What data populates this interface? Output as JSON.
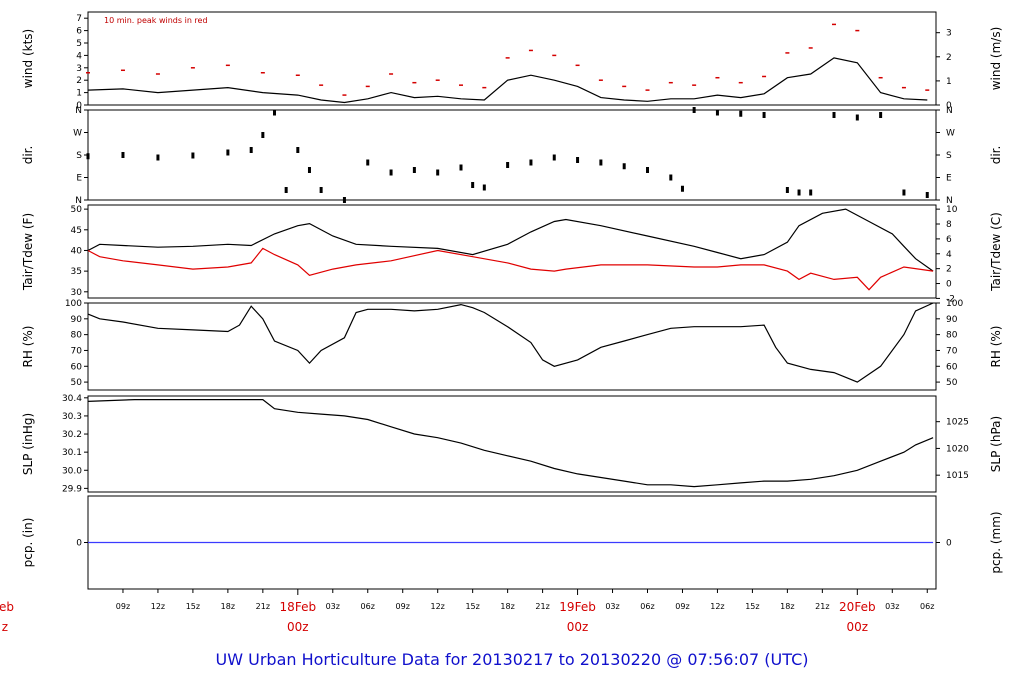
{
  "footer": {
    "title": "UW Urban Horticulture Data for 20130217  to  20130220 @ 07:56:07  (UTC)",
    "color": "#1010cc"
  },
  "x_axis": {
    "start_hour": 6,
    "end_hour": 78,
    "time_ticks": [
      {
        "h": 9,
        "label": "09z"
      },
      {
        "h": 12,
        "label": "12z"
      },
      {
        "h": 15,
        "label": "15z"
      },
      {
        "h": 18,
        "label": "18z"
      },
      {
        "h": 21,
        "label": "21z"
      },
      {
        "h": 27,
        "label": "03z"
      },
      {
        "h": 30,
        "label": "06z"
      },
      {
        "h": 33,
        "label": "09z"
      },
      {
        "h": 36,
        "label": "12z"
      },
      {
        "h": 39,
        "label": "15z"
      },
      {
        "h": 42,
        "label": "18z"
      },
      {
        "h": 45,
        "label": "21z"
      },
      {
        "h": 51,
        "label": "03z"
      },
      {
        "h": 54,
        "label": "06z"
      },
      {
        "h": 57,
        "label": "09z"
      },
      {
        "h": 60,
        "label": "12z"
      },
      {
        "h": 63,
        "label": "15z"
      },
      {
        "h": 66,
        "label": "18z"
      },
      {
        "h": 69,
        "label": "21z"
      },
      {
        "h": 75,
        "label": "03z"
      },
      {
        "h": 78,
        "label": "06z"
      }
    ],
    "day_ticks": [
      {
        "h": 24,
        "date": "18Feb",
        "time": "00z"
      },
      {
        "h": 48,
        "date": "19Feb",
        "time": "00z"
      },
      {
        "h": 72,
        "date": "20Feb",
        "time": "00z"
      }
    ],
    "clipped_left": {
      "date": "eb",
      "time": "z"
    },
    "day_color": "#d40000"
  },
  "chart_data": [
    {
      "type": "line",
      "panel": "wind",
      "ylabel_left": "wind (kts)",
      "ylabel_right": "wind (m/s)",
      "annotation": "10 min. peak winds in red",
      "ylim": [
        0,
        7.5
      ],
      "left_ticks": [
        "0",
        "1",
        "2",
        "3",
        "4",
        "5",
        "6",
        "7"
      ],
      "right_ticks": [
        "0",
        "1",
        "2",
        "3"
      ],
      "series": [
        {
          "name": "wind",
          "color": "#000000",
          "x": [
            6,
            9,
            12,
            15,
            18,
            21,
            24,
            26,
            28,
            30,
            32,
            34,
            36,
            38,
            40,
            42,
            44,
            46,
            48,
            50,
            52,
            54,
            56,
            58,
            60,
            62,
            64,
            66,
            68,
            70,
            72,
            74,
            76,
            78
          ],
          "y": [
            1.2,
            1.3,
            1.0,
            1.2,
            1.4,
            1.0,
            0.8,
            0.4,
            0.2,
            0.5,
            1.0,
            0.6,
            0.7,
            0.5,
            0.4,
            2.0,
            2.4,
            2.0,
            1.5,
            0.6,
            0.4,
            0.3,
            0.5,
            0.5,
            0.8,
            0.6,
            0.9,
            2.2,
            2.5,
            3.8,
            3.4,
            1.0,
            0.5,
            0.4
          ]
        },
        {
          "name": "peak",
          "color": "#d40000",
          "x": [
            6,
            9,
            12,
            15,
            18,
            21,
            24,
            26,
            28,
            30,
            32,
            34,
            36,
            38,
            40,
            42,
            44,
            46,
            48,
            50,
            52,
            54,
            56,
            58,
            60,
            62,
            64,
            66,
            68,
            70,
            72,
            74,
            76,
            78
          ],
          "y": [
            2.6,
            2.8,
            2.5,
            3.0,
            3.2,
            2.6,
            2.4,
            1.6,
            0.8,
            1.5,
            2.5,
            1.8,
            2.0,
            1.6,
            1.4,
            3.8,
            4.4,
            4.0,
            3.2,
            2.0,
            1.5,
            1.2,
            1.8,
            1.6,
            2.2,
            1.8,
            2.3,
            4.2,
            4.6,
            6.5,
            6.0,
            2.2,
            1.4,
            1.2
          ]
        }
      ]
    },
    {
      "type": "scatter",
      "panel": "dir",
      "ylabel_left": "dir.",
      "ylabel_right": "dir.",
      "ylim": [
        0,
        360
      ],
      "left_ticks": [
        "N",
        "E",
        "S",
        "W",
        "N"
      ],
      "right_ticks": [
        "N",
        "E",
        "S",
        "W",
        "N"
      ],
      "series": [
        {
          "name": "dir",
          "color": "#000000",
          "x": [
            6,
            9,
            12,
            15,
            18,
            20,
            21,
            22,
            23,
            24,
            25,
            26,
            28,
            30,
            32,
            34,
            36,
            38,
            39,
            40,
            42,
            44,
            46,
            48,
            50,
            52,
            54,
            56,
            57,
            58,
            60,
            62,
            64,
            66,
            67,
            68,
            70,
            72,
            74,
            76,
            78
          ],
          "y": [
            175,
            180,
            170,
            178,
            190,
            200,
            260,
            350,
            40,
            200,
            120,
            40,
            0,
            150,
            110,
            120,
            110,
            130,
            60,
            50,
            140,
            150,
            170,
            160,
            150,
            135,
            120,
            90,
            45,
            360,
            350,
            345,
            340,
            40,
            30,
            30,
            340,
            330,
            340,
            30,
            20
          ]
        }
      ]
    },
    {
      "type": "line",
      "panel": "temp",
      "ylabel_left": "Tair/Tdew (F)",
      "ylabel_right": "Tair/Tdew (C)",
      "ylim": [
        28.5,
        51
      ],
      "left_ticks": [
        "30",
        "35",
        "40",
        "45",
        "50"
      ],
      "right_ticks": [
        "-2",
        "0",
        "2",
        "4",
        "6",
        "8",
        "10"
      ],
      "series": [
        {
          "name": "Tair",
          "color": "#000000",
          "x": [
            6,
            7,
            9,
            12,
            15,
            18,
            20,
            22,
            24,
            25,
            27,
            29,
            32,
            36,
            39,
            42,
            44,
            46,
            47,
            50,
            54,
            58,
            60,
            62,
            64,
            66,
            67,
            69,
            71,
            73,
            75,
            76,
            77,
            78.5
          ],
          "y": [
            40,
            41.5,
            41.2,
            40.8,
            41.0,
            41.5,
            41.2,
            44,
            46,
            46.5,
            43.5,
            41.5,
            41.0,
            40.5,
            39,
            41.5,
            44.5,
            47,
            47.5,
            46,
            43.5,
            41,
            39.5,
            38,
            39,
            42,
            46,
            49,
            50,
            47,
            44,
            41,
            38,
            35
          ]
        },
        {
          "name": "Tdew",
          "color": "#e00000",
          "x": [
            6,
            7,
            9,
            12,
            15,
            18,
            20,
            21,
            22,
            24,
            25,
            27,
            29,
            32,
            36,
            39,
            42,
            44,
            46,
            47,
            50,
            54,
            58,
            60,
            62,
            64,
            66,
            67,
            68,
            70,
            72,
            73,
            74,
            76,
            78.5
          ],
          "y": [
            40,
            38.5,
            37.5,
            36.5,
            35.5,
            36,
            37,
            40.5,
            39,
            36.5,
            34,
            35.5,
            36.5,
            37.5,
            40,
            38.5,
            37,
            35.5,
            35,
            35.5,
            36.5,
            36.5,
            36,
            36,
            36.5,
            36.5,
            35,
            33,
            34.5,
            33,
            33.5,
            30.5,
            33.5,
            36,
            35
          ]
        }
      ]
    },
    {
      "type": "line",
      "panel": "rh",
      "ylabel_left": "RH (%)",
      "ylabel_right": "RH (%)",
      "ylim": [
        45,
        100
      ],
      "left_ticks": [
        "50",
        "60",
        "70",
        "80",
        "90",
        "100"
      ],
      "right_ticks": [
        "50",
        "60",
        "70",
        "80",
        "90",
        "100"
      ],
      "series": [
        {
          "name": "RH",
          "color": "#000000",
          "x": [
            6,
            7,
            9,
            12,
            15,
            18,
            19,
            20,
            21,
            22,
            24,
            25,
            26,
            28,
            29,
            30,
            32,
            34,
            36,
            38,
            39,
            40,
            42,
            44,
            45,
            46,
            48,
            50,
            52,
            54,
            56,
            58,
            60,
            62,
            64,
            65,
            66,
            68,
            70,
            71,
            72,
            74,
            76,
            77,
            78.5
          ],
          "y": [
            93,
            90,
            88,
            84,
            83,
            82,
            86,
            98,
            90,
            76,
            70,
            62,
            70,
            78,
            94,
            96,
            96,
            95,
            96,
            99,
            97,
            94,
            85,
            75,
            64,
            60,
            64,
            72,
            76,
            80,
            84,
            85,
            85,
            85,
            86,
            72,
            62,
            58,
            56,
            53,
            50,
            60,
            80,
            95,
            100
          ]
        }
      ]
    },
    {
      "type": "line",
      "panel": "slp",
      "ylabel_left": "SLP (inHg)",
      "ylabel_right": "SLP (hPa)",
      "ylim": [
        29.88,
        30.41
      ],
      "left_ticks": [
        "29.9",
        "30.0",
        "30.1",
        "30.2",
        "30.3",
        "30.4"
      ],
      "right_ticks": [
        "1015",
        "1020",
        "1025"
      ],
      "series": [
        {
          "name": "SLP",
          "color": "#000000",
          "x": [
            6,
            10,
            14,
            18,
            21,
            22,
            24,
            26,
            28,
            30,
            32,
            34,
            36,
            38,
            40,
            42,
            44,
            46,
            48,
            50,
            52,
            54,
            56,
            58,
            60,
            62,
            64,
            66,
            68,
            70,
            72,
            74,
            76,
            77,
            78.5
          ],
          "y": [
            30.38,
            30.39,
            30.39,
            30.39,
            30.39,
            30.34,
            30.32,
            30.31,
            30.3,
            30.28,
            30.24,
            30.2,
            30.18,
            30.15,
            30.11,
            30.08,
            30.05,
            30.01,
            29.98,
            29.96,
            29.94,
            29.92,
            29.92,
            29.91,
            29.92,
            29.93,
            29.94,
            29.94,
            29.95,
            29.97,
            30.0,
            30.05,
            30.1,
            30.14,
            30.18
          ]
        }
      ]
    },
    {
      "type": "line",
      "panel": "pcp",
      "ylabel_left": "pcp. (in)",
      "ylabel_right": "pcp. (mm)",
      "ylim": [
        -1,
        1
      ],
      "left_ticks": [
        "0"
      ],
      "right_ticks": [
        "0"
      ],
      "series": [
        {
          "name": "pcp",
          "color": "#3b3bff",
          "x": [
            6,
            78.5
          ],
          "y": [
            0,
            0
          ]
        }
      ]
    }
  ]
}
